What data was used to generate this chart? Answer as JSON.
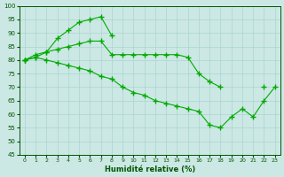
{
  "xlabel": "Humidité relative (%)",
  "bg_color": "#cce8e4",
  "line_color": "#00aa00",
  "ylim": [
    45,
    100
  ],
  "xlim": [
    -0.5,
    23.5
  ],
  "yticks": [
    45,
    50,
    55,
    60,
    65,
    70,
    75,
    80,
    85,
    90,
    95,
    100
  ],
  "xticks": [
    0,
    1,
    2,
    3,
    4,
    5,
    6,
    7,
    8,
    9,
    10,
    11,
    12,
    13,
    14,
    15,
    16,
    17,
    18,
    19,
    20,
    21,
    22,
    23
  ],
  "series": [
    [
      80,
      82,
      83,
      88,
      91,
      94,
      95,
      96,
      89,
      null,
      null,
      null,
      null,
      null,
      null,
      null,
      null,
      null,
      null,
      null,
      null,
      null,
      null,
      null
    ],
    [
      80,
      81,
      83,
      84,
      85,
      86,
      87,
      87,
      82,
      82,
      82,
      82,
      82,
      82,
      82,
      81,
      75,
      72,
      70,
      null,
      null,
      null,
      70,
      null
    ],
    [
      80,
      81,
      80,
      79,
      78,
      77,
      76,
      74,
      73,
      70,
      68,
      67,
      65,
      64,
      63,
      62,
      61,
      56,
      55,
      59,
      62,
      59,
      65,
      70
    ]
  ]
}
